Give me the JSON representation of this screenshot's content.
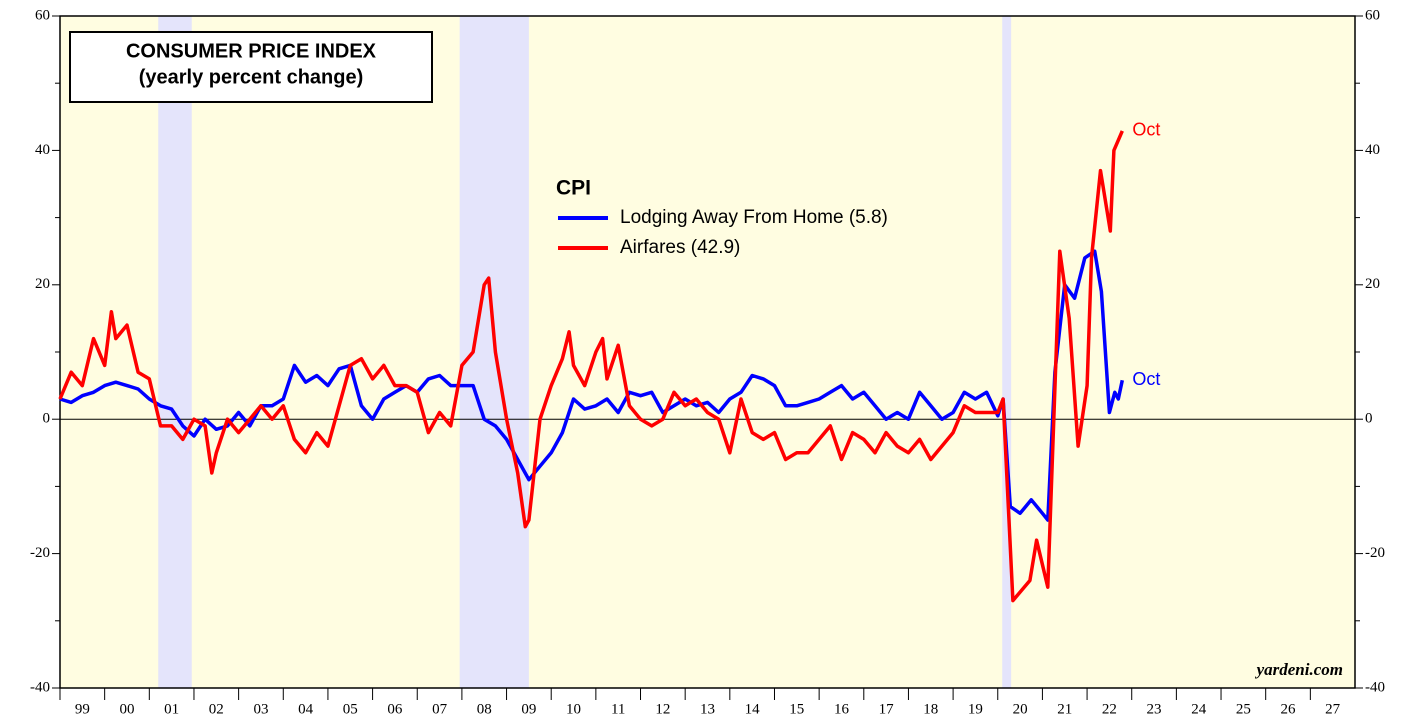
{
  "chart_data": {
    "type": "line",
    "title": "CONSUMER PRICE INDEX",
    "subtitle": "(yearly percent change)",
    "legend_title": "CPI",
    "source": "yardeni.com",
    "xlim": [
      1999,
      2028
    ],
    "ylim": [
      -40,
      60
    ],
    "yticks": [
      60,
      40,
      20,
      0,
      -20,
      -40
    ],
    "xticks": [
      {
        "value": 1999.5,
        "label": "99"
      },
      {
        "value": 2000.5,
        "label": "00"
      },
      {
        "value": 2001.5,
        "label": "01"
      },
      {
        "value": 2002.5,
        "label": "02"
      },
      {
        "value": 2003.5,
        "label": "03"
      },
      {
        "value": 2004.5,
        "label": "04"
      },
      {
        "value": 2005.5,
        "label": "05"
      },
      {
        "value": 2006.5,
        "label": "06"
      },
      {
        "value": 2007.5,
        "label": "07"
      },
      {
        "value": 2008.5,
        "label": "08"
      },
      {
        "value": 2009.5,
        "label": "09"
      },
      {
        "value": 2010.5,
        "label": "10"
      },
      {
        "value": 2011.5,
        "label": "11"
      },
      {
        "value": 2012.5,
        "label": "12"
      },
      {
        "value": 2013.5,
        "label": "13"
      },
      {
        "value": 2014.5,
        "label": "14"
      },
      {
        "value": 2015.5,
        "label": "15"
      },
      {
        "value": 2016.5,
        "label": "16"
      },
      {
        "value": 2017.5,
        "label": "17"
      },
      {
        "value": 2018.5,
        "label": "18"
      },
      {
        "value": 2019.5,
        "label": "19"
      },
      {
        "value": 2020.5,
        "label": "20"
      },
      {
        "value": 2021.5,
        "label": "21"
      },
      {
        "value": 2022.5,
        "label": "22"
      },
      {
        "value": 2023.5,
        "label": "23"
      },
      {
        "value": 2024.5,
        "label": "24"
      },
      {
        "value": 2025.5,
        "label": "25"
      },
      {
        "value": 2026.5,
        "label": "26"
      },
      {
        "value": 2027.5,
        "label": "27"
      }
    ],
    "recessions": [
      [
        2001.2,
        2001.95
      ],
      [
        2007.95,
        2009.5
      ],
      [
        2020.1,
        2020.3
      ]
    ],
    "background_color": "#fffde1",
    "recession_color": "#e4e4fb",
    "series": [
      {
        "name": "Lodging Away From Home (5.8)",
        "color": "#0000ff",
        "end_label": "Oct",
        "x": [
          1999,
          1999.25,
          1999.5,
          1999.75,
          2000,
          2000.25,
          2000.5,
          2000.75,
          2001,
          2001.25,
          2001.5,
          2001.75,
          2002,
          2002.25,
          2002.5,
          2002.75,
          2003,
          2003.25,
          2003.5,
          2003.75,
          2004,
          2004.25,
          2004.5,
          2004.75,
          2005,
          2005.25,
          2005.5,
          2005.75,
          2006,
          2006.25,
          2006.5,
          2006.75,
          2007,
          2007.25,
          2007.5,
          2007.75,
          2008,
          2008.25,
          2008.5,
          2008.75,
          2009,
          2009.25,
          2009.5,
          2009.75,
          2010,
          2010.25,
          2010.5,
          2010.75,
          2011,
          2011.25,
          2011.5,
          2011.75,
          2012,
          2012.25,
          2012.5,
          2012.75,
          2013,
          2013.25,
          2013.5,
          2013.75,
          2014,
          2014.25,
          2014.5,
          2014.75,
          2015,
          2015.25,
          2015.5,
          2015.75,
          2016,
          2016.25,
          2016.5,
          2016.75,
          2017,
          2017.25,
          2017.5,
          2017.75,
          2018,
          2018.25,
          2018.5,
          2018.75,
          2019,
          2019.25,
          2019.5,
          2019.75,
          2020,
          2020.12,
          2020.28,
          2020.5,
          2020.75,
          2021,
          2021.12,
          2021.28,
          2021.5,
          2021.72,
          2021.95,
          2022.17,
          2022.32,
          2022.5,
          2022.62,
          2022.7,
          2022.79
        ],
        "values": [
          3,
          2.5,
          3.5,
          4,
          5,
          5.5,
          5,
          4.5,
          3,
          2,
          1.5,
          -1,
          -2.5,
          0,
          -1.5,
          -1,
          1,
          -1,
          2,
          2,
          3,
          8,
          5.5,
          6.5,
          5,
          7.5,
          8,
          2,
          0,
          3,
          4,
          5,
          4,
          6,
          6.5,
          5,
          5,
          5,
          0,
          -1,
          -3,
          -6,
          -9,
          -7,
          -5,
          -2,
          3,
          1.5,
          2,
          3,
          1,
          4,
          3.5,
          4,
          1,
          2,
          3,
          2,
          2.5,
          1,
          3,
          4,
          6.5,
          6,
          5,
          2,
          2,
          2.5,
          3,
          4,
          5,
          3,
          4,
          2,
          0,
          1,
          0,
          4,
          2,
          0,
          1,
          4,
          3,
          4,
          0.5,
          3,
          -13,
          -14,
          -12,
          -14,
          -15,
          7,
          20,
          18,
          24,
          25,
          19,
          1,
          4,
          3,
          5.8
        ]
      },
      {
        "name": "Airfares (42.9)",
        "color": "#ff0000",
        "end_label": "Oct",
        "x": [
          1999,
          1999.25,
          1999.5,
          1999.75,
          2000,
          2000.15,
          2000.25,
          2000.5,
          2000.75,
          2001,
          2001.25,
          2001.5,
          2001.75,
          2002,
          2002.25,
          2002.4,
          2002.5,
          2002.75,
          2003,
          2003.25,
          2003.5,
          2003.75,
          2004,
          2004.25,
          2004.5,
          2004.75,
          2005,
          2005.25,
          2005.5,
          2005.75,
          2006,
          2006.25,
          2006.5,
          2006.75,
          2007,
          2007.25,
          2007.5,
          2007.75,
          2008,
          2008.25,
          2008.5,
          2008.6,
          2008.75,
          2009,
          2009.25,
          2009.42,
          2009.5,
          2009.75,
          2010,
          2010.25,
          2010.4,
          2010.5,
          2010.75,
          2011,
          2011.15,
          2011.25,
          2011.5,
          2011.75,
          2012,
          2012.25,
          2012.5,
          2012.75,
          2013,
          2013.25,
          2013.5,
          2013.75,
          2014,
          2014.25,
          2014.5,
          2014.75,
          2015,
          2015.25,
          2015.5,
          2015.75,
          2016,
          2016.25,
          2016.5,
          2016.75,
          2017,
          2017.25,
          2017.5,
          2017.75,
          2018,
          2018.25,
          2018.5,
          2018.75,
          2019,
          2019.25,
          2019.5,
          2019.75,
          2020,
          2020.12,
          2020.34,
          2020.72,
          2020.87,
          2021.12,
          2021.39,
          2021.6,
          2021.8,
          2022,
          2022.1,
          2022.3,
          2022.52,
          2022.6,
          2022.79
        ],
        "values": [
          3,
          7,
          5,
          12,
          8,
          16,
          12,
          14,
          7,
          6,
          -1,
          -1,
          -3,
          0,
          -1,
          -8,
          -5,
          0,
          -2,
          0,
          2,
          0,
          2,
          -3,
          -5,
          -2,
          -4,
          2,
          8,
          9,
          6,
          8,
          5,
          5,
          4,
          -2,
          1,
          -1,
          8,
          10,
          20,
          21,
          10,
          0,
          -8,
          -16,
          -15,
          0,
          5,
          9,
          13,
          8,
          5,
          10,
          12,
          6,
          11,
          2,
          0,
          -1,
          0,
          4,
          2,
          3,
          1,
          0,
          -5,
          3,
          -2,
          -3,
          -2,
          -6,
          -5,
          -5,
          -3,
          -1,
          -6,
          -2,
          -3,
          -5,
          -2,
          -4,
          -5,
          -3,
          -6,
          -4,
          -2,
          2,
          1,
          1,
          1,
          3,
          -27,
          -24,
          -18,
          -25,
          25,
          15,
          -4,
          5,
          24,
          37,
          28,
          40,
          42.9
        ]
      }
    ]
  }
}
